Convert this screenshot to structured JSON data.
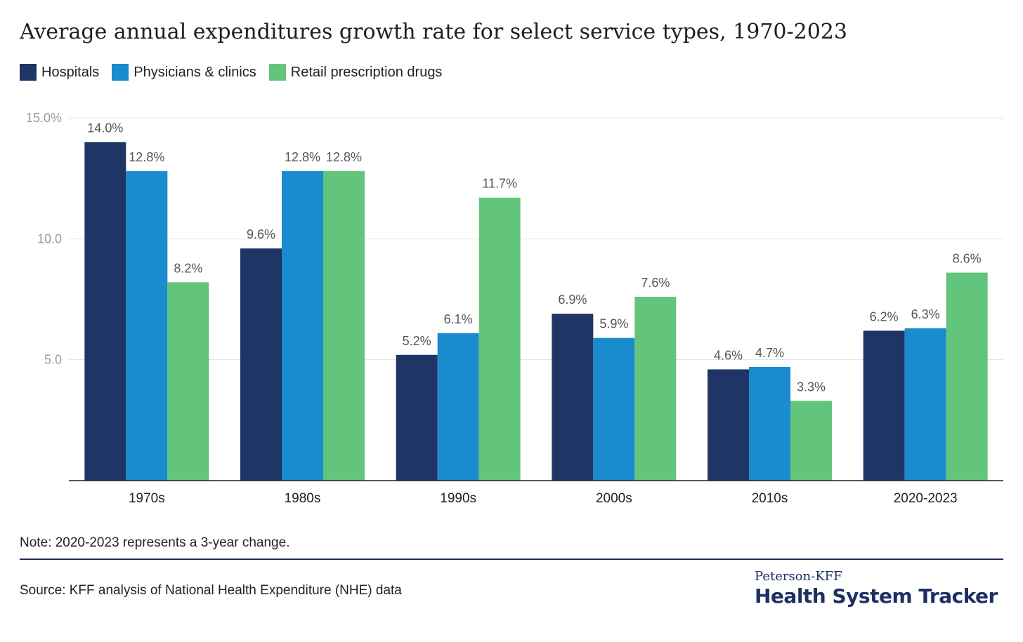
{
  "chart_data": {
    "type": "bar",
    "title": "Average annual expenditures growth rate for select service types, 1970-2023",
    "categories": [
      "1970s",
      "1980s",
      "1990s",
      "2000s",
      "2010s",
      "2020-2023"
    ],
    "series": [
      {
        "name": "Hospitals",
        "color": "#1f3566",
        "values": [
          14.0,
          9.6,
          5.2,
          6.9,
          4.6,
          6.2
        ],
        "labels": [
          "14.0%",
          "9.6%",
          "5.2%",
          "6.9%",
          "4.6%",
          "6.2%"
        ]
      },
      {
        "name": "Physicians & clinics",
        "color": "#1a8bcc",
        "values": [
          12.8,
          12.8,
          6.1,
          5.9,
          4.7,
          6.3
        ],
        "labels": [
          "12.8%",
          "12.8%",
          "6.1%",
          "5.9%",
          "4.7%",
          "6.3%"
        ]
      },
      {
        "name": "Retail prescription drugs",
        "color": "#63c57b",
        "values": [
          8.2,
          12.8,
          11.7,
          7.6,
          3.3,
          8.6
        ],
        "labels": [
          "8.2%",
          "12.8%",
          "11.7%",
          "7.6%",
          "3.3%",
          "8.6%"
        ]
      }
    ],
    "yticks": [
      {
        "value": 5,
        "label": "5.0"
      },
      {
        "value": 10,
        "label": "10.0"
      },
      {
        "value": 15,
        "label": "15.0%"
      }
    ],
    "ylim": [
      0,
      15
    ],
    "grid": true,
    "legend": "top-left"
  },
  "note": "Note: 2020-2023 represents a 3-year change.",
  "source": "Source: KFF analysis of National Health Expenditure (NHE) data",
  "brand": {
    "top": "Peterson-KFF",
    "main": "Health System Tracker"
  }
}
